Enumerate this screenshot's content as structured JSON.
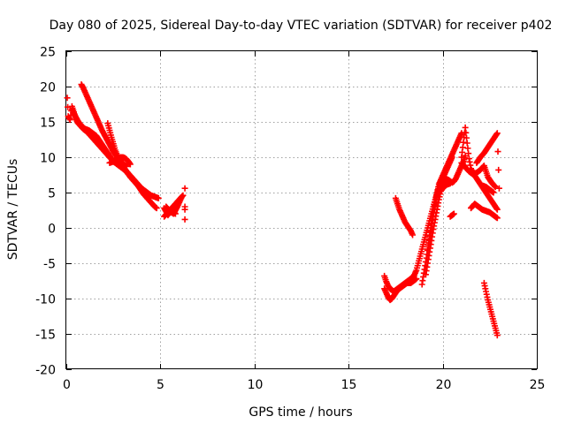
{
  "chart_data": {
    "type": "scatter",
    "title": "Day 080 of 2025, Sidereal Day-to-day VTEC variation (SDTVAR) for receiver p402",
    "xlabel": "GPS time / hours",
    "ylabel": "SDTVAR / TECUs",
    "xlim": [
      0,
      25
    ],
    "ylim": [
      -20,
      25
    ],
    "xticks": [
      0,
      5,
      10,
      15,
      20,
      25
    ],
    "yticks": [
      -20,
      -15,
      -10,
      -5,
      0,
      5,
      10,
      15,
      20,
      25
    ],
    "grid": true,
    "marker": "plus",
    "color": "#ff0000",
    "series": [
      {
        "x": [
          0.05,
          0.1,
          0.2,
          0.3,
          0.4,
          0.5,
          0.6,
          0.7,
          0.8,
          0.9,
          1.0,
          1.1,
          1.2,
          1.3,
          1.4,
          1.5,
          1.6,
          1.7,
          1.8,
          1.9,
          2.0,
          2.1,
          2.2,
          2.3,
          2.4,
          2.5,
          2.6,
          2.7,
          2.8,
          2.9,
          3.0,
          3.1,
          3.2,
          3.3,
          3.4,
          3.5,
          3.6,
          3.7,
          3.8,
          3.9,
          4.0,
          4.1,
          4.2,
          4.3,
          4.4,
          4.5,
          4.6,
          4.7,
          4.8
        ],
        "y": [
          18.4,
          15.8,
          15.3,
          17.2,
          16.4,
          15.5,
          14.9,
          14.6,
          14.3,
          14.0,
          13.8,
          13.6,
          13.3,
          13.0,
          12.7,
          12.4,
          12.1,
          11.8,
          11.5,
          11.2,
          10.9,
          10.6,
          10.3,
          10.0,
          9.7,
          9.5,
          9.3,
          9.1,
          8.9,
          8.7,
          8.5,
          8.2,
          7.9,
          7.6,
          7.3,
          7.0,
          6.7,
          6.4,
          6.0,
          5.6,
          5.2,
          4.8,
          4.5,
          4.2,
          3.9,
          3.6,
          3.3,
          3.0,
          2.8
        ]
      },
      {
        "x": [
          0.8,
          0.9,
          1.0,
          1.1,
          1.2,
          1.3,
          1.4,
          1.5,
          1.6,
          1.7,
          1.8,
          1.9,
          2.0,
          2.1,
          2.2,
          2.3,
          2.4,
          2.5,
          2.6,
          2.7,
          2.8,
          2.9,
          3.0,
          3.1,
          3.2,
          3.3,
          3.4,
          3.5,
          3.6,
          3.7,
          3.8,
          3.9,
          4.0,
          4.1,
          4.2,
          4.3,
          4.4,
          4.5,
          4.6,
          4.7,
          4.8,
          4.9
        ],
        "y": [
          20.3,
          19.8,
          19.2,
          18.6,
          18.0,
          17.4,
          16.8,
          16.2,
          15.6,
          15.0,
          14.4,
          13.8,
          13.3,
          12.8,
          12.3,
          11.8,
          11.3,
          10.8,
          10.4,
          10.0,
          9.6,
          9.2,
          8.8,
          8.4,
          8.0,
          7.6,
          7.2,
          6.9,
          6.6,
          6.3,
          6.0,
          5.8,
          5.6,
          5.4,
          5.2,
          5.0,
          4.8,
          4.6,
          4.5,
          4.4,
          4.3,
          4.2
        ]
      },
      {
        "x": [
          0.3,
          0.4,
          0.5,
          0.6,
          0.7,
          0.8,
          0.9,
          1.0,
          1.1,
          1.2,
          1.3,
          1.4,
          1.5,
          1.6,
          1.7,
          1.8,
          1.9,
          2.0,
          2.1,
          2.2,
          2.3,
          2.4,
          2.5,
          2.6,
          2.7,
          2.8,
          2.9,
          3.0,
          3.1,
          3.2,
          3.3,
          3.4,
          3.5,
          3.6,
          3.7,
          3.8,
          3.9,
          4.0
        ],
        "y": [
          16.8,
          16.2,
          15.7,
          15.2,
          14.8,
          14.5,
          14.2,
          14.0,
          13.9,
          13.8,
          13.6,
          13.4,
          13.2,
          13.0,
          12.6,
          12.2,
          11.8,
          11.4,
          11.0,
          10.6,
          10.2,
          9.8,
          9.4,
          9.2,
          9.0,
          8.8,
          8.6,
          8.4,
          8.2,
          8.0,
          7.7,
          7.4,
          7.1,
          6.8,
          6.5,
          6.2,
          5.9,
          5.6
        ]
      },
      {
        "x": [
          2.2,
          2.3,
          2.4,
          2.5,
          2.6,
          2.7,
          2.8,
          2.9,
          3.0,
          3.1,
          3.2
        ],
        "y": [
          14.8,
          13.8,
          12.8,
          11.9,
          11.0,
          10.3,
          9.8,
          9.4,
          9.1,
          8.9,
          8.7
        ]
      },
      {
        "x": [
          2.3,
          2.4,
          2.5,
          2.6,
          2.7,
          2.8,
          2.9,
          3.0,
          3.1,
          3.2,
          3.3,
          3.4
        ],
        "y": [
          9.2,
          9.3,
          9.4,
          9.6,
          9.8,
          9.9,
          10.0,
          10.0,
          9.9,
          9.7,
          9.4,
          9.0
        ]
      },
      {
        "x": [
          5.2,
          5.4,
          5.6,
          5.8,
          6.0,
          6.2,
          5.3,
          5.5,
          5.7,
          5.9,
          6.1,
          5.2,
          5.4,
          5.6,
          5.8,
          6.3,
          6.3,
          6.3,
          6.3
        ],
        "y": [
          1.6,
          2.2,
          2.8,
          3.4,
          4.0,
          4.6,
          3.0,
          2.4,
          2.0,
          3.0,
          4.2,
          2.8,
          1.8,
          2.5,
          2.0,
          5.6,
          3.0,
          2.6,
          1.2
        ]
      },
      {
        "x": [
          16.9,
          17.0,
          17.1,
          17.2,
          17.3,
          17.4,
          17.5,
          17.6,
          17.7,
          17.8,
          17.9,
          18.0,
          18.1,
          18.2,
          18.3,
          18.4,
          18.5,
          18.6,
          18.7,
          18.8,
          18.9,
          19.0,
          19.1,
          19.2,
          19.3,
          19.4,
          19.5,
          19.6,
          19.7,
          19.8,
          19.9,
          20.0,
          20.1,
          20.2,
          20.3,
          20.4,
          20.5
        ],
        "y": [
          -6.8,
          -7.6,
          -8.2,
          -8.6,
          -8.8,
          -9.0,
          -8.8,
          -8.6,
          -8.4,
          -8.2,
          -8.0,
          -7.8,
          -7.6,
          -7.4,
          -7.2,
          -7.0,
          -6.6,
          -6.0,
          -5.0,
          -4.0,
          -3.0,
          -2.0,
          -1.0,
          0.0,
          1.0,
          2.0,
          3.0,
          4.0,
          5.0,
          5.8,
          6.4,
          7.0,
          7.6,
          8.2,
          8.8,
          9.4,
          10.0
        ]
      },
      {
        "x": [
          16.9,
          17.0,
          17.1,
          17.2,
          17.3,
          17.4,
          17.5,
          17.6,
          17.7,
          17.8,
          17.9,
          18.0,
          18.1,
          18.2,
          18.3,
          18.4,
          18.5,
          18.6
        ],
        "y": [
          -8.6,
          -9.2,
          -9.8,
          -10.2,
          -10.0,
          -9.6,
          -9.2,
          -8.8,
          -8.6,
          -8.4,
          -8.2,
          -8.0,
          -7.8,
          -7.8,
          -7.8,
          -7.6,
          -7.4,
          -7.2
        ]
      },
      {
        "x": [
          17.5,
          17.6,
          17.7,
          17.8,
          17.9,
          18.0,
          18.1,
          18.2,
          18.3,
          18.4
        ],
        "y": [
          4.2,
          3.4,
          2.6,
          2.0,
          1.4,
          0.8,
          0.4,
          0.0,
          -0.4,
          -1.0
        ]
      },
      {
        "x": [
          18.9,
          19.0,
          19.1,
          19.2,
          19.3,
          19.4,
          19.5,
          19.6,
          19.7,
          19.8,
          19.9,
          20.0,
          20.1,
          20.2,
          20.3,
          20.4,
          20.5,
          20.6,
          20.7,
          20.8,
          20.9,
          21.0,
          21.1,
          21.2
        ],
        "y": [
          -8.0,
          -6.4,
          -4.8,
          -3.2,
          -1.6,
          0.0,
          1.6,
          3.2,
          4.8,
          5.8,
          6.2,
          6.6,
          6.8,
          6.9,
          6.8,
          6.6,
          6.4,
          6.6,
          7.0,
          7.6,
          8.2,
          8.8,
          9.4,
          10.2
        ]
      },
      {
        "x": [
          19.2,
          19.3,
          19.4,
          19.5,
          19.6,
          19.7,
          19.8,
          19.9,
          20.0,
          20.1,
          20.2,
          20.3,
          20.4,
          20.5,
          20.6,
          20.7,
          20.8,
          20.9,
          21.0
        ],
        "y": [
          -3.0,
          -1.2,
          0.6,
          2.2,
          3.6,
          5.0,
          6.2,
          6.8,
          7.4,
          8.0,
          8.6,
          9.2,
          9.8,
          10.4,
          11.0,
          11.6,
          12.2,
          12.8,
          13.4
        ]
      },
      {
        "x": [
          19.1,
          19.2,
          19.3,
          19.4,
          19.5,
          19.6,
          19.7,
          19.8,
          19.9,
          20.0,
          20.1,
          20.2,
          20.3,
          20.4
        ],
        "y": [
          -6.6,
          -5.0,
          -3.4,
          -1.8,
          -0.2,
          1.2,
          2.6,
          4.0,
          5.2,
          5.6,
          5.9,
          6.1,
          6.2,
          6.3
        ]
      },
      {
        "x": [
          20.4,
          20.6,
          21.0,
          21.2,
          21.3,
          21.4,
          21.5,
          21.6,
          21.7,
          21.8,
          21.9,
          22.0,
          22.1,
          22.2,
          22.3,
          22.4,
          22.5,
          22.6,
          22.7,
          22.8,
          22.9
        ],
        "y": [
          1.6,
          2.0,
          10.0,
          14.2,
          12.0,
          9.8,
          8.4,
          7.8,
          7.4,
          7.0,
          6.6,
          6.2,
          5.8,
          5.4,
          5.0,
          4.6,
          4.2,
          3.8,
          3.4,
          3.0,
          2.6
        ]
      },
      {
        "x": [
          21.0,
          21.2,
          21.4,
          21.6,
          21.8,
          22.0,
          22.2,
          22.4,
          22.6,
          22.8,
          21.5,
          21.7,
          21.9,
          22.1,
          22.3,
          22.5,
          22.7,
          22.9
        ],
        "y": [
          9.2,
          8.6,
          8.0,
          7.6,
          7.8,
          8.2,
          8.8,
          7.2,
          6.4,
          5.8,
          2.8,
          3.4,
          3.0,
          2.6,
          2.4,
          2.2,
          1.8,
          1.4
        ]
      },
      {
        "x": [
          21.8,
          22.0,
          22.2,
          22.4,
          22.6,
          22.8,
          22.9,
          23.0,
          22.1,
          22.3,
          22.5,
          22.7
        ],
        "y": [
          9.2,
          10.0,
          10.6,
          11.4,
          12.2,
          13.0,
          13.4,
          5.6,
          6.0,
          5.8,
          5.4,
          5.0
        ]
      },
      {
        "x": [
          22.2,
          22.3,
          22.4,
          22.5,
          22.6,
          22.7,
          22.8,
          22.9
        ],
        "y": [
          -7.8,
          -9.0,
          -10.2,
          -11.2,
          -12.2,
          -13.2,
          -14.2,
          -15.2
        ]
      }
    ]
  }
}
